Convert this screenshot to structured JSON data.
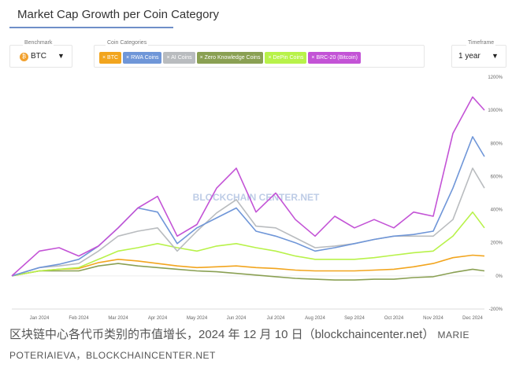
{
  "header": {
    "title": "Market Cap Growth per Coin Category"
  },
  "benchmark": {
    "label": "Benchmark",
    "value": "BTC",
    "icon": "bitcoin-icon"
  },
  "coin_categories": {
    "label": "Coin Categories",
    "chips": [
      {
        "label": "BTC",
        "color": "#f2a51e"
      },
      {
        "label": "RWA Coins",
        "color": "#6f96d8"
      },
      {
        "label": "AI Coins",
        "color": "#b9bcbf"
      },
      {
        "label": "Zero Knowledge Coins",
        "color": "#8aa053"
      },
      {
        "label": "DePin Coins",
        "color": "#b8f24a"
      },
      {
        "label": "BRC-20 (Bitcoin)",
        "color": "#c353d6"
      }
    ]
  },
  "timeframe": {
    "label": "Timeframe",
    "value": "1 year"
  },
  "watermark": "BLOCKCHAIN CENTER.NET",
  "chart_data": {
    "type": "line",
    "title": "Market Cap Growth per Coin Category",
    "xlabel": "",
    "ylabel": "",
    "x_unit": "months since Jan 2024",
    "x": [
      -0.7,
      0,
      0.5,
      1,
      1.5,
      2,
      2.5,
      3,
      3.5,
      4,
      4.5,
      5,
      5.5,
      6,
      6.5,
      7,
      7.5,
      8,
      8.5,
      9,
      9.5,
      10,
      10.5,
      11,
      11.3
    ],
    "x_ticks": [
      {
        "v": 0,
        "label": "Jan 2024"
      },
      {
        "v": 1,
        "label": "Feb 2024"
      },
      {
        "v": 2,
        "label": "Mar 2024"
      },
      {
        "v": 3,
        "label": "Apr 2024"
      },
      {
        "v": 4,
        "label": "May 2024"
      },
      {
        "v": 5,
        "label": "Jun 2024"
      },
      {
        "v": 6,
        "label": "Jul 2024"
      },
      {
        "v": 7,
        "label": "Aug 2024"
      },
      {
        "v": 8,
        "label": "Sep 2024"
      },
      {
        "v": 9,
        "label": "Oct 2024"
      },
      {
        "v": 10,
        "label": "Nov 2024"
      },
      {
        "v": 11,
        "label": "Dec 2024"
      }
    ],
    "y_ticks": [
      {
        "v": 1200,
        "label": "1200%"
      },
      {
        "v": 1000,
        "label": "1000%"
      },
      {
        "v": 800,
        "label": "800%"
      },
      {
        "v": 600,
        "label": "600%"
      },
      {
        "v": 400,
        "label": "400%"
      },
      {
        "v": 200,
        "label": "200%"
      },
      {
        "v": 0,
        "label": "0%"
      },
      {
        "v": -200,
        "label": "-200%"
      }
    ],
    "ylim": [
      -200,
      1200
    ],
    "xlim": [
      -0.7,
      11.3
    ],
    "grid": false,
    "series": [
      {
        "name": "BTC",
        "color": "#f2a51e",
        "values": [
          0,
          30,
          40,
          45,
          80,
          100,
          90,
          75,
          60,
          50,
          55,
          60,
          50,
          45,
          35,
          30,
          30,
          30,
          35,
          40,
          55,
          75,
          110,
          125,
          120
        ]
      },
      {
        "name": "Zero Knowledge Coins",
        "color": "#8aa053",
        "values": [
          0,
          30,
          30,
          30,
          60,
          75,
          60,
          50,
          40,
          30,
          25,
          15,
          5,
          -5,
          -15,
          -20,
          -25,
          -25,
          -20,
          -20,
          -10,
          -5,
          20,
          40,
          30
        ]
      },
      {
        "name": "DePin Coins",
        "color": "#b8f24a",
        "values": [
          0,
          30,
          40,
          50,
          100,
          150,
          170,
          195,
          170,
          150,
          180,
          195,
          170,
          150,
          120,
          100,
          100,
          100,
          110,
          125,
          140,
          150,
          240,
          385,
          290
        ]
      },
      {
        "name": "AI Coins",
        "color": "#b9bcbf",
        "values": [
          0,
          50,
          60,
          75,
          150,
          240,
          270,
          290,
          150,
          270,
          380,
          460,
          300,
          290,
          230,
          170,
          180,
          195,
          220,
          240,
          240,
          240,
          340,
          650,
          530
        ]
      },
      {
        "name": "RWA Coins",
        "color": "#6f96d8",
        "values": [
          0,
          50,
          70,
          100,
          180,
          290,
          410,
          385,
          195,
          290,
          350,
          410,
          270,
          240,
          200,
          150,
          170,
          195,
          220,
          240,
          250,
          270,
          530,
          840,
          720
        ]
      },
      {
        "name": "BRC-20 (Bitcoin)",
        "color": "#c353d6",
        "values": [
          0,
          150,
          170,
          120,
          180,
          290,
          410,
          480,
          240,
          310,
          530,
          650,
          385,
          500,
          340,
          240,
          360,
          290,
          340,
          290,
          385,
          360,
          860,
          1080,
          1000
        ]
      }
    ]
  },
  "caption": {
    "main": "区块链中心各代币类别的市值增长，2024 年 12 月 10 日（blockchaincenter.net）",
    "credit_1": "MARIE",
    "credit_2": "POTERIAIEVA，BLOCKCHAINCENTER.NET"
  }
}
